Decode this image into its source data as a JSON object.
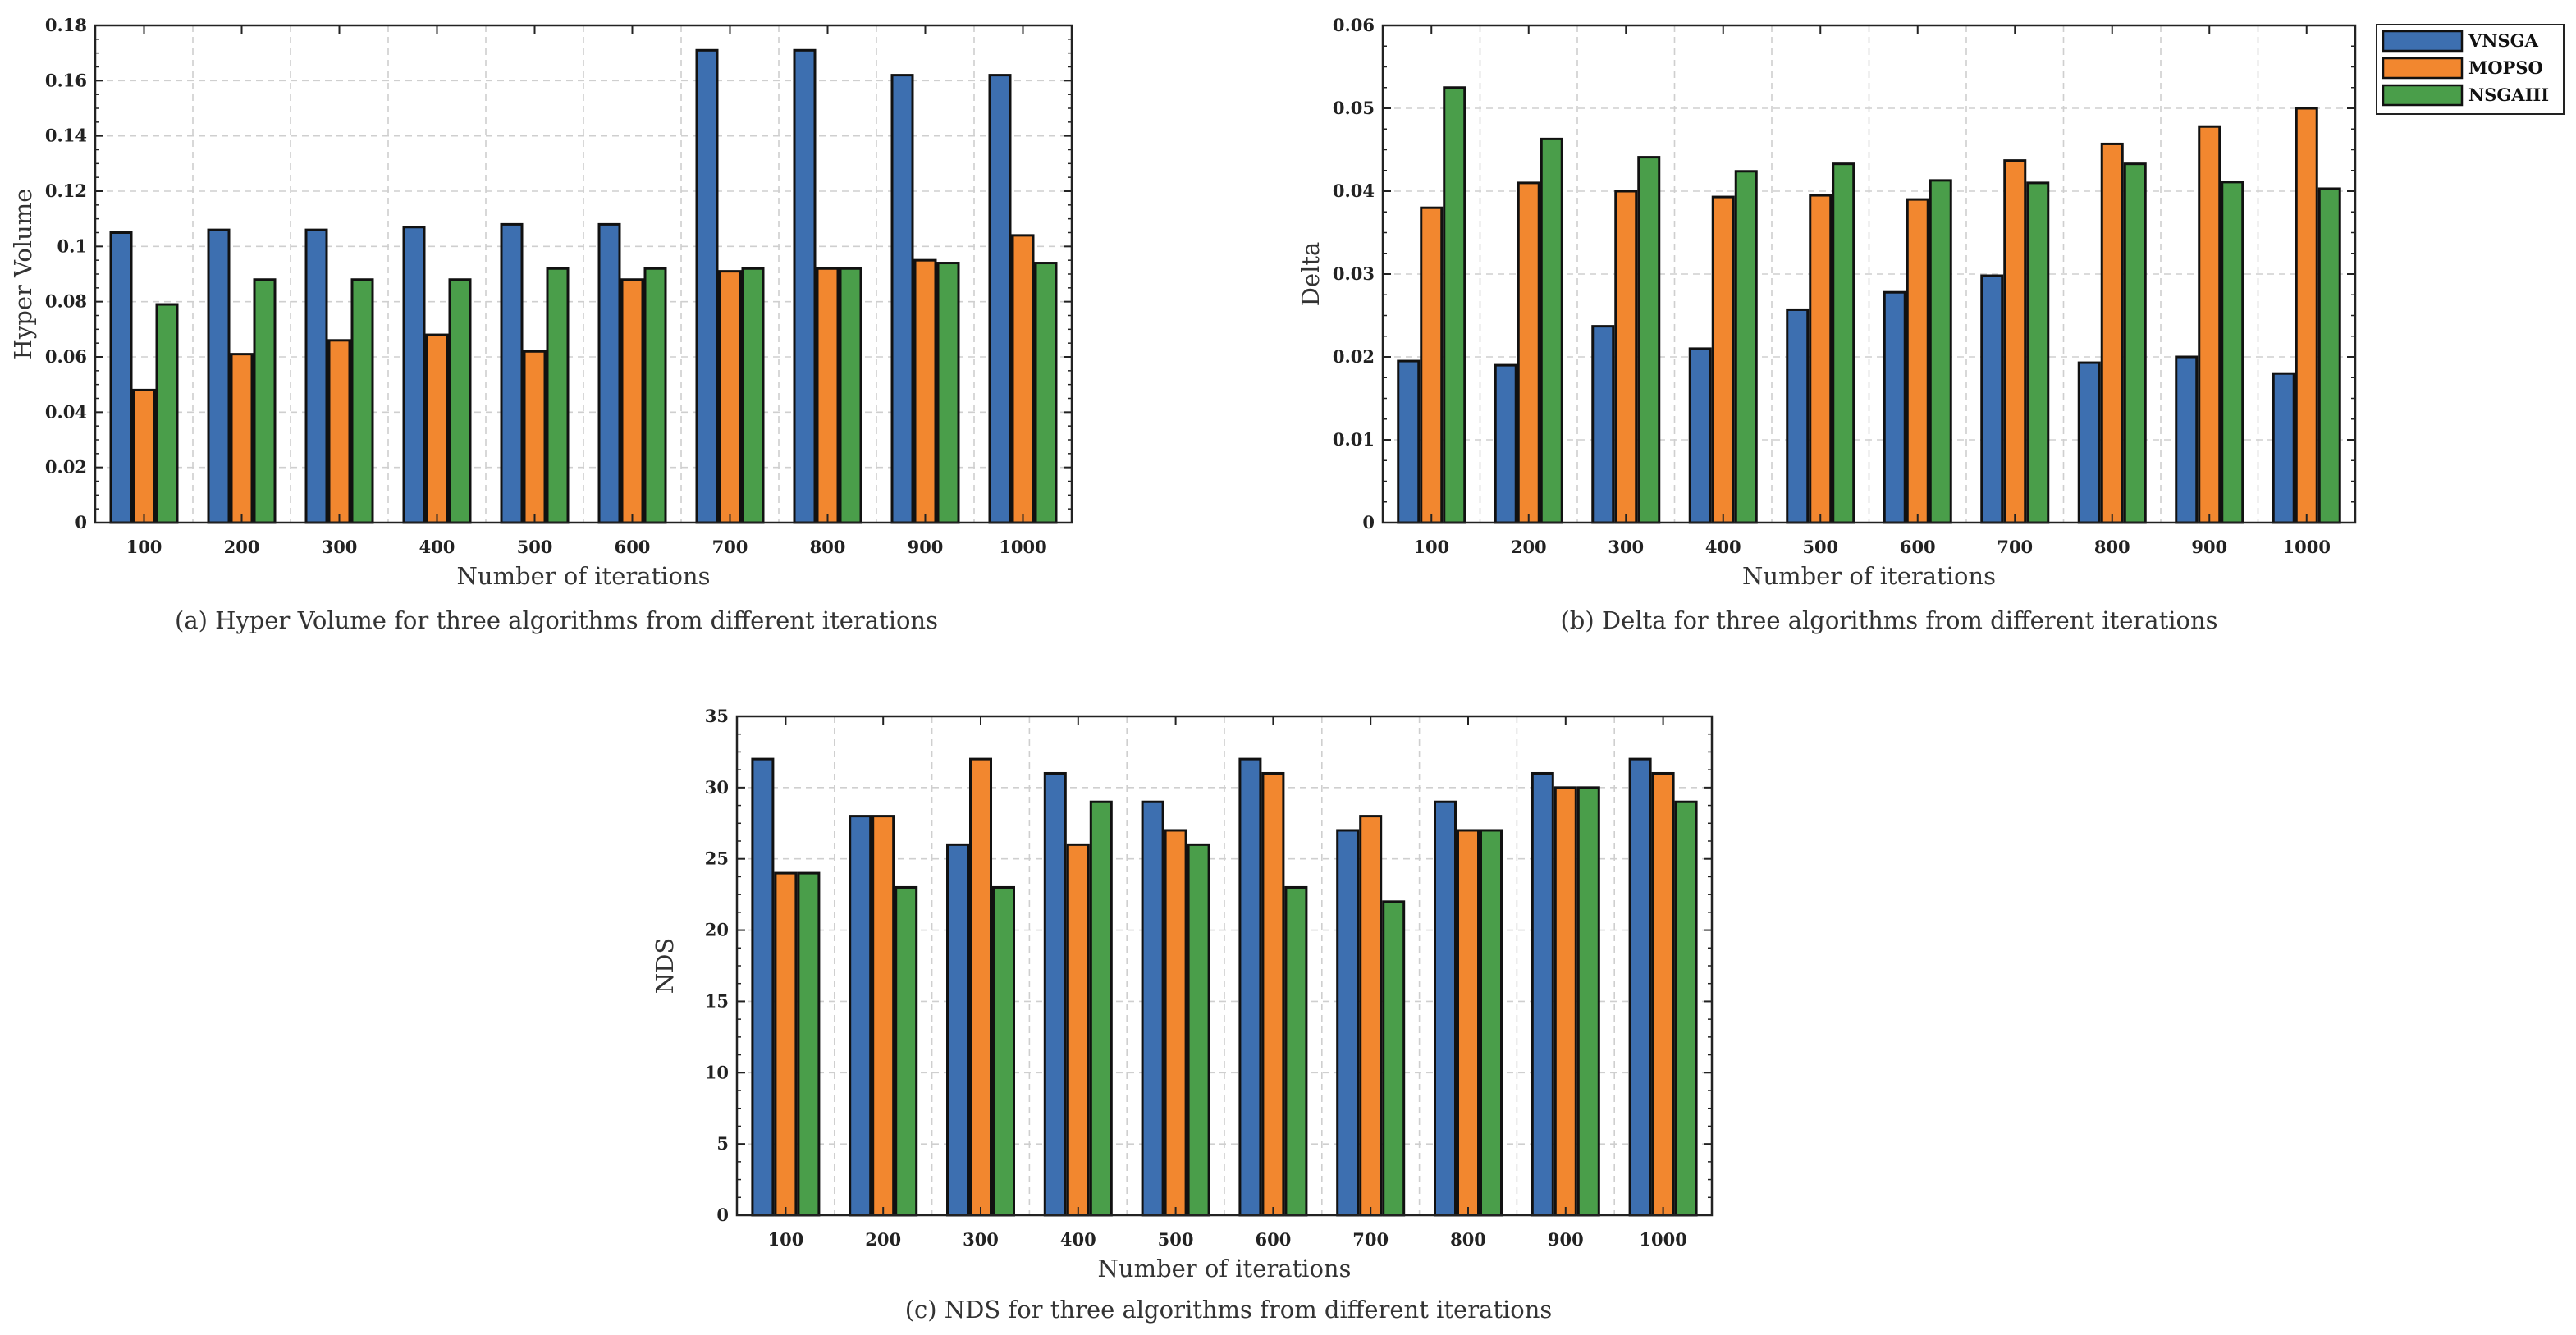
{
  "colors": {
    "VNSGA": "#3d6fb0",
    "MOPSO": "#f2872f",
    "NSGAIII": "#4a9e4a"
  },
  "legend": [
    "VNSGA",
    "MOPSO",
    "NSGAIII"
  ],
  "chart_data": [
    {
      "type": "bar",
      "categories": [
        "100",
        "200",
        "300",
        "400",
        "500",
        "600",
        "700",
        "800",
        "900",
        "1000"
      ],
      "series": [
        {
          "name": "VNSGA",
          "values": [
            0.105,
            0.106,
            0.106,
            0.107,
            0.108,
            0.108,
            0.171,
            0.171,
            0.162,
            0.162
          ]
        },
        {
          "name": "MOPSO",
          "values": [
            0.048,
            0.061,
            0.066,
            0.068,
            0.062,
            0.088,
            0.091,
            0.092,
            0.095,
            0.104
          ]
        },
        {
          "name": "NSGAIII",
          "values": [
            0.079,
            0.088,
            0.088,
            0.088,
            0.092,
            0.092,
            0.092,
            0.092,
            0.094,
            0.094
          ]
        }
      ],
      "xlabel": "Number of iterations",
      "ylabel": "Hyper Volume",
      "ylim": [
        0,
        0.18
      ],
      "yticks": [
        "0",
        "0.02",
        "0.04",
        "0.06",
        "0.08",
        "0.1",
        "0.12",
        "0.14",
        "0.16",
        "0.18"
      ],
      "caption": "(a) Hyper Volume for three algorithms from different iterations",
      "grid": true
    },
    {
      "type": "bar",
      "categories": [
        "100",
        "200",
        "300",
        "400",
        "500",
        "600",
        "700",
        "800",
        "900",
        "1000"
      ],
      "series": [
        {
          "name": "VNSGA",
          "values": [
            0.0195,
            0.019,
            0.0237,
            0.021,
            0.0257,
            0.0278,
            0.0298,
            0.0193,
            0.02,
            0.018
          ]
        },
        {
          "name": "MOPSO",
          "values": [
            0.038,
            0.041,
            0.04,
            0.0393,
            0.0395,
            0.039,
            0.0437,
            0.0457,
            0.0478,
            0.05
          ]
        },
        {
          "name": "NSGAIII",
          "values": [
            0.0525,
            0.0463,
            0.0441,
            0.0424,
            0.0433,
            0.0413,
            0.041,
            0.0433,
            0.0411,
            0.0403
          ]
        }
      ],
      "xlabel": "Number of iterations",
      "ylabel": "Delta",
      "ylim": [
        0,
        0.06
      ],
      "yticks": [
        "0",
        "0.01",
        "0.02",
        "0.03",
        "0.04",
        "0.05",
        "0.06"
      ],
      "caption": "(b) Delta for three algorithms from different iterations",
      "legend_position": "outside-top-right",
      "grid": true
    },
    {
      "type": "bar",
      "categories": [
        "100",
        "200",
        "300",
        "400",
        "500",
        "600",
        "700",
        "800",
        "900",
        "1000"
      ],
      "series": [
        {
          "name": "VNSGA",
          "values": [
            32,
            28,
            26,
            31,
            29,
            32,
            27,
            29,
            31,
            32
          ]
        },
        {
          "name": "MOPSO",
          "values": [
            24,
            28,
            32,
            26,
            27,
            31,
            28,
            27,
            30,
            31
          ]
        },
        {
          "name": "NSGAIII",
          "values": [
            24,
            23,
            23,
            29,
            26,
            23,
            22,
            27,
            30,
            29
          ]
        }
      ],
      "xlabel": "Number of iterations",
      "ylabel": "NDS",
      "ylim": [
        0,
        35
      ],
      "yticks": [
        "0",
        "5",
        "10",
        "15",
        "20",
        "25",
        "30",
        "35"
      ],
      "caption": "(c) NDS for three algorithms from different iterations",
      "grid": true
    }
  ]
}
